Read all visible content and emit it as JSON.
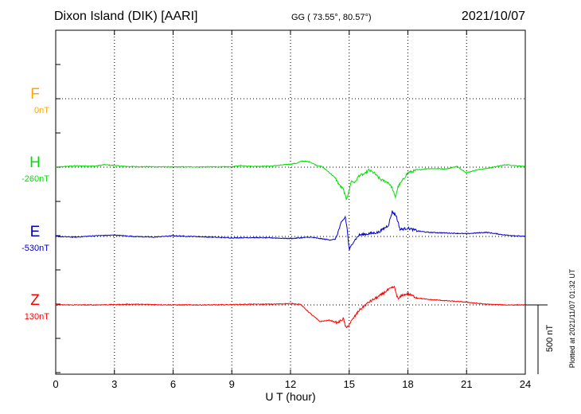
{
  "header": {
    "station": "Dixon Island (DIK)  [AARI]",
    "coords": "GG ( 73.55°,  80.57°)",
    "date": "2021/10/07"
  },
  "footer": {
    "plotted": "Plotted at 2021/11/07 01:32 UT"
  },
  "chart_data": {
    "type": "line",
    "title": "",
    "xlabel": "U T (hour)",
    "ylabel": "",
    "xlim": [
      0,
      24
    ],
    "xticks": [
      0,
      3,
      6,
      9,
      12,
      15,
      18,
      21,
      24
    ],
    "grid": true,
    "scale_bar": {
      "label": "500 nT",
      "value_nT": 500
    },
    "series": [
      {
        "name": "F",
        "baseline_label": "0nT",
        "color": "#ffa500",
        "x": [],
        "values": []
      },
      {
        "name": "H",
        "baseline_label": "-260nT",
        "color": "#00e000",
        "x": [
          0,
          1,
          2,
          2.5,
          3,
          3.5,
          4,
          5,
          6,
          7,
          8,
          9,
          9.5,
          10,
          11,
          12,
          12.3,
          12.6,
          13,
          13.3,
          13.6,
          14,
          14.3,
          14.5,
          14.7,
          14.85,
          15,
          15.1,
          15.3,
          15.5,
          15.8,
          16,
          16.3,
          16.6,
          17,
          17.2,
          17.35,
          17.5,
          17.8,
          18,
          18.5,
          19,
          20,
          20.5,
          21,
          21.5,
          22,
          23,
          24
        ],
        "values": [
          0,
          10,
          8,
          18,
          12,
          6,
          4,
          3,
          2,
          2,
          2,
          3,
          12,
          6,
          8,
          22,
          28,
          45,
          38,
          15,
          5,
          -40,
          -80,
          -130,
          -160,
          -230,
          -170,
          -100,
          -110,
          -60,
          -50,
          -20,
          -45,
          -90,
          -110,
          -150,
          -220,
          -140,
          -80,
          -40,
          -20,
          -10,
          -12,
          6,
          -40,
          -20,
          -10,
          18,
          5
        ]
      },
      {
        "name": "E",
        "baseline_label": "-530nT",
        "color": "#0000cc",
        "x": [
          0,
          1,
          2,
          3,
          4,
          5,
          6,
          7,
          8,
          9,
          10,
          11,
          12,
          12.5,
          13,
          13.5,
          14,
          14.3,
          14.6,
          14.8,
          14.9,
          15,
          15.2,
          15.5,
          16,
          16.5,
          17,
          17.2,
          17.4,
          17.6,
          18,
          18.5,
          19,
          20,
          21,
          22,
          23,
          24
        ],
        "values": [
          0,
          -5,
          5,
          10,
          0,
          -5,
          5,
          0,
          -5,
          -10,
          -8,
          -10,
          -15,
          -10,
          -5,
          -15,
          -25,
          -20,
          100,
          140,
          50,
          -100,
          -40,
          10,
          20,
          30,
          80,
          180,
          150,
          50,
          60,
          40,
          30,
          25,
          20,
          30,
          10,
          0
        ]
      },
      {
        "name": "Z",
        "baseline_label": "130nT",
        "color": "#ff0000",
        "x": [
          0,
          2,
          4,
          6,
          8,
          10,
          11,
          12,
          12.5,
          13,
          13.5,
          14,
          14.4,
          14.7,
          14.85,
          15,
          15.2,
          15.5,
          16,
          16.5,
          17,
          17.3,
          17.5,
          17.7,
          18,
          18.5,
          19,
          20,
          21,
          22,
          23,
          24
        ],
        "values": [
          0,
          0,
          5,
          0,
          0,
          5,
          5,
          10,
          5,
          -60,
          -120,
          -110,
          -130,
          -100,
          -170,
          -140,
          -100,
          -40,
          20,
          60,
          110,
          130,
          40,
          70,
          80,
          50,
          40,
          30,
          20,
          5,
          0,
          0
        ]
      }
    ]
  }
}
